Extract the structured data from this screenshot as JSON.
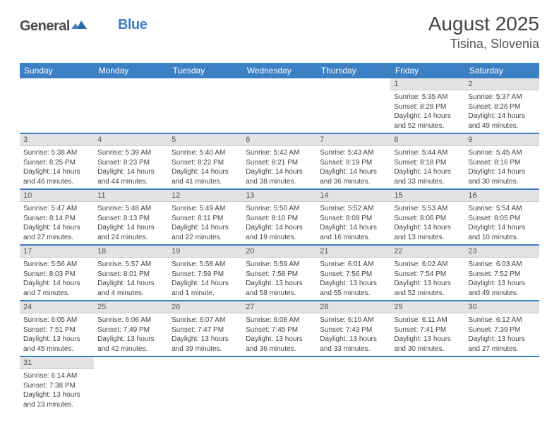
{
  "logo": {
    "part1": "General",
    "part2": "Blue"
  },
  "title": "August 2025",
  "location": "Tisina, Slovenia",
  "colors": {
    "header_bg": "#3b7fc4",
    "daynum_bg": "#e3e3e3",
    "row_border": "#3b7fc4",
    "text": "#444444"
  },
  "weekdays": [
    "Sunday",
    "Monday",
    "Tuesday",
    "Wednesday",
    "Thursday",
    "Friday",
    "Saturday"
  ],
  "weeks": [
    [
      null,
      null,
      null,
      null,
      null,
      {
        "n": "1",
        "sunrise": "Sunrise: 5:35 AM",
        "sunset": "Sunset: 8:28 PM",
        "day": "Daylight: 14 hours and 52 minutes."
      },
      {
        "n": "2",
        "sunrise": "Sunrise: 5:37 AM",
        "sunset": "Sunset: 8:26 PM",
        "day": "Daylight: 14 hours and 49 minutes."
      }
    ],
    [
      {
        "n": "3",
        "sunrise": "Sunrise: 5:38 AM",
        "sunset": "Sunset: 8:25 PM",
        "day": "Daylight: 14 hours and 46 minutes."
      },
      {
        "n": "4",
        "sunrise": "Sunrise: 5:39 AM",
        "sunset": "Sunset: 8:23 PM",
        "day": "Daylight: 14 hours and 44 minutes."
      },
      {
        "n": "5",
        "sunrise": "Sunrise: 5:40 AM",
        "sunset": "Sunset: 8:22 PM",
        "day": "Daylight: 14 hours and 41 minutes."
      },
      {
        "n": "6",
        "sunrise": "Sunrise: 5:42 AM",
        "sunset": "Sunset: 8:21 PM",
        "day": "Daylight: 14 hours and 38 minutes."
      },
      {
        "n": "7",
        "sunrise": "Sunrise: 5:43 AM",
        "sunset": "Sunset: 8:19 PM",
        "day": "Daylight: 14 hours and 36 minutes."
      },
      {
        "n": "8",
        "sunrise": "Sunrise: 5:44 AM",
        "sunset": "Sunset: 8:18 PM",
        "day": "Daylight: 14 hours and 33 minutes."
      },
      {
        "n": "9",
        "sunrise": "Sunrise: 5:45 AM",
        "sunset": "Sunset: 8:16 PM",
        "day": "Daylight: 14 hours and 30 minutes."
      }
    ],
    [
      {
        "n": "10",
        "sunrise": "Sunrise: 5:47 AM",
        "sunset": "Sunset: 8:14 PM",
        "day": "Daylight: 14 hours and 27 minutes."
      },
      {
        "n": "11",
        "sunrise": "Sunrise: 5:48 AM",
        "sunset": "Sunset: 8:13 PM",
        "day": "Daylight: 14 hours and 24 minutes."
      },
      {
        "n": "12",
        "sunrise": "Sunrise: 5:49 AM",
        "sunset": "Sunset: 8:11 PM",
        "day": "Daylight: 14 hours and 22 minutes."
      },
      {
        "n": "13",
        "sunrise": "Sunrise: 5:50 AM",
        "sunset": "Sunset: 8:10 PM",
        "day": "Daylight: 14 hours and 19 minutes."
      },
      {
        "n": "14",
        "sunrise": "Sunrise: 5:52 AM",
        "sunset": "Sunset: 8:08 PM",
        "day": "Daylight: 14 hours and 16 minutes."
      },
      {
        "n": "15",
        "sunrise": "Sunrise: 5:53 AM",
        "sunset": "Sunset: 8:06 PM",
        "day": "Daylight: 14 hours and 13 minutes."
      },
      {
        "n": "16",
        "sunrise": "Sunrise: 5:54 AM",
        "sunset": "Sunset: 8:05 PM",
        "day": "Daylight: 14 hours and 10 minutes."
      }
    ],
    [
      {
        "n": "17",
        "sunrise": "Sunrise: 5:56 AM",
        "sunset": "Sunset: 8:03 PM",
        "day": "Daylight: 14 hours and 7 minutes."
      },
      {
        "n": "18",
        "sunrise": "Sunrise: 5:57 AM",
        "sunset": "Sunset: 8:01 PM",
        "day": "Daylight: 14 hours and 4 minutes."
      },
      {
        "n": "19",
        "sunrise": "Sunrise: 5:58 AM",
        "sunset": "Sunset: 7:59 PM",
        "day": "Daylight: 14 hours and 1 minute."
      },
      {
        "n": "20",
        "sunrise": "Sunrise: 5:59 AM",
        "sunset": "Sunset: 7:58 PM",
        "day": "Daylight: 13 hours and 58 minutes."
      },
      {
        "n": "21",
        "sunrise": "Sunrise: 6:01 AM",
        "sunset": "Sunset: 7:56 PM",
        "day": "Daylight: 13 hours and 55 minutes."
      },
      {
        "n": "22",
        "sunrise": "Sunrise: 6:02 AM",
        "sunset": "Sunset: 7:54 PM",
        "day": "Daylight: 13 hours and 52 minutes."
      },
      {
        "n": "23",
        "sunrise": "Sunrise: 6:03 AM",
        "sunset": "Sunset: 7:52 PM",
        "day": "Daylight: 13 hours and 49 minutes."
      }
    ],
    [
      {
        "n": "24",
        "sunrise": "Sunrise: 6:05 AM",
        "sunset": "Sunset: 7:51 PM",
        "day": "Daylight: 13 hours and 45 minutes."
      },
      {
        "n": "25",
        "sunrise": "Sunrise: 6:06 AM",
        "sunset": "Sunset: 7:49 PM",
        "day": "Daylight: 13 hours and 42 minutes."
      },
      {
        "n": "26",
        "sunrise": "Sunrise: 6:07 AM",
        "sunset": "Sunset: 7:47 PM",
        "day": "Daylight: 13 hours and 39 minutes."
      },
      {
        "n": "27",
        "sunrise": "Sunrise: 6:08 AM",
        "sunset": "Sunset: 7:45 PM",
        "day": "Daylight: 13 hours and 36 minutes."
      },
      {
        "n": "28",
        "sunrise": "Sunrise: 6:10 AM",
        "sunset": "Sunset: 7:43 PM",
        "day": "Daylight: 13 hours and 33 minutes."
      },
      {
        "n": "29",
        "sunrise": "Sunrise: 6:11 AM",
        "sunset": "Sunset: 7:41 PM",
        "day": "Daylight: 13 hours and 30 minutes."
      },
      {
        "n": "30",
        "sunrise": "Sunrise: 6:12 AM",
        "sunset": "Sunset: 7:39 PM",
        "day": "Daylight: 13 hours and 27 minutes."
      }
    ],
    [
      {
        "n": "31",
        "sunrise": "Sunrise: 6:14 AM",
        "sunset": "Sunset: 7:38 PM",
        "day": "Daylight: 13 hours and 23 minutes."
      },
      null,
      null,
      null,
      null,
      null,
      null
    ]
  ]
}
